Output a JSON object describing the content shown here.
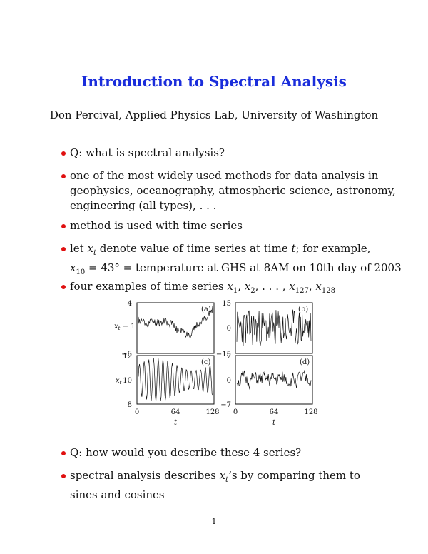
{
  "title": "Introduction to Spectral Analysis",
  "author": "Don Percival, Applied Physics Lab, University of Washington",
  "bullets": [
    {
      "lines": [
        "Q: what is spectral analysis?"
      ]
    },
    {
      "lines": [
        "one of the most widely used methods for data analysis in",
        "geophysics, oceanography, atmospheric science, astronomy,",
        "engineering (all types), . . ."
      ]
    },
    {
      "lines": [
        "method is used with time series"
      ]
    },
    {
      "line1_pre": "let ",
      "line1_var": "x",
      "line1_sub": "t",
      "line1_mid": " denote value of time series at time ",
      "line1_t": "t",
      "line1_post": "; for example,",
      "line2_var": "x",
      "line2_sub": "10",
      "line2_post": " = 43° = temperature at GHS at 8AM on 10th day of 2003"
    },
    {
      "pre": "four examples of time series ",
      "vars": [
        {
          "v": "x",
          "s": "1"
        },
        {
          "v": "x",
          "s": "2"
        }
      ],
      "dots": ", . . . , ",
      "vars2": [
        {
          "v": "x",
          "s": "127"
        },
        {
          "v": "x",
          "s": "128"
        }
      ]
    },
    {
      "lines": [
        "Q: how would you describe these 4 series?"
      ]
    },
    {
      "pre": "spectral analysis describes ",
      "var": "x",
      "sub": "t",
      "post": "’s by comparing them to",
      "line2": "sines and cosines"
    }
  ],
  "colors": {
    "title": "#1a2ddb",
    "bullet": "#e01010"
  },
  "page_number": "1",
  "chart_data": [
    {
      "type": "line",
      "panel": "(a)",
      "ylabel": "x_t − 1",
      "ylim": [
        -6,
        4
      ],
      "yticks": [
        "4",
        "−6"
      ],
      "xlim": [
        0,
        128
      ],
      "seed": 11,
      "kind": "a"
    },
    {
      "type": "line",
      "panel": "(b)",
      "ylabel": "",
      "ylim": [
        -15,
        15
      ],
      "yticks": [
        "15",
        "0",
        "−15"
      ],
      "xlim": [
        0,
        128
      ],
      "seed": 23,
      "kind": "b"
    },
    {
      "type": "line",
      "panel": "(c)",
      "ylabel": "x_t",
      "ylim": [
        8,
        12
      ],
      "yticks": [
        "12",
        "10",
        "8"
      ],
      "xlim": [
        0,
        128
      ],
      "xticks": [
        "0",
        "64",
        "128"
      ],
      "xlabel": "t",
      "seed": 37,
      "kind": "c"
    },
    {
      "type": "line",
      "panel": "(d)",
      "ylabel": "",
      "ylim": [
        -7,
        7
      ],
      "yticks": [
        "7",
        "0",
        "−7"
      ],
      "xlim": [
        0,
        128
      ],
      "xticks": [
        "0",
        "64",
        "128"
      ],
      "xlabel": "t",
      "seed": 51,
      "kind": "d"
    }
  ]
}
